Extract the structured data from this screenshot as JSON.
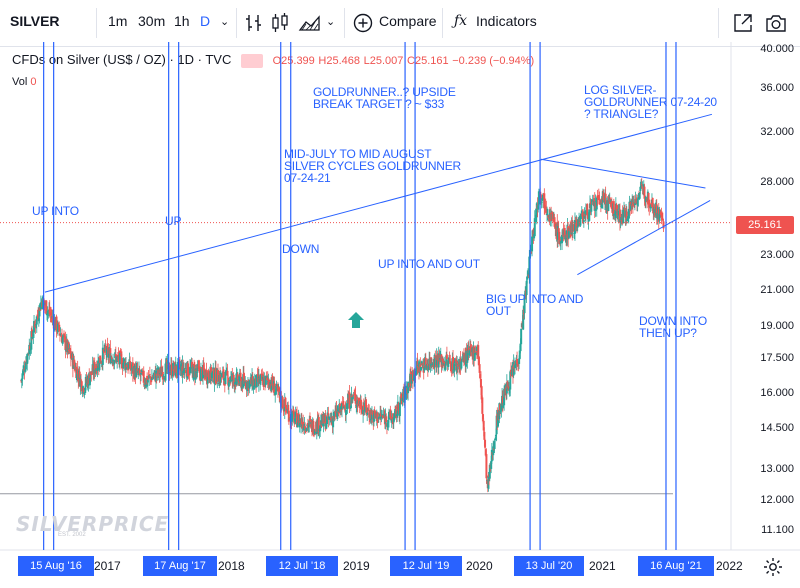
{
  "toolbar": {
    "symbol": "SILVER",
    "intervals": [
      "1m",
      "30m",
      "1h",
      "D"
    ],
    "compare_label": "Compare",
    "indicators_label": "Indicators"
  },
  "legend": {
    "title": "CFDs on Silver (US$ / OZ) · 1D · TVC",
    "open": "O25.399",
    "high": "H25.468",
    "low": "L25.007",
    "close": "C25.161",
    "change": "−0.239 (−0.94%)",
    "vol_label": "Vol",
    "vol_value": "0"
  },
  "annotations": [
    {
      "id": "up-into",
      "text": "UP INTO"
    },
    {
      "id": "up",
      "text": "UP"
    },
    {
      "id": "down",
      "text": "DOWN"
    },
    {
      "id": "up-into-and-out",
      "text": "UP INTO AND OUT"
    },
    {
      "id": "big-up",
      "text": "BIG UP INTO AND\nOUT"
    },
    {
      "id": "down-into",
      "text": "DOWN INTO\nTHEN UP?"
    },
    {
      "id": "goldrunner",
      "text": "GOLDRUNNER..? UPSIDE\nBREAK TARGET ? ~ $33"
    },
    {
      "id": "mid-july",
      "text": "MID-JULY TO MID AUGUST\nSILVER CYCLES GOLDRUNNER\n07-24-21"
    },
    {
      "id": "log-silver",
      "text": "LOG SILVER-\nGOLDRUNNER 07-24-20\n? TRIANGLE?"
    }
  ],
  "y_axis_labels": [
    "40.000",
    "36.000",
    "32.000",
    "28.000",
    "23.000",
    "21.000",
    "19.000",
    "17.500",
    "16.000",
    "14.500",
    "13.000",
    "12.000",
    "11.100"
  ],
  "last_price": "25.161",
  "date_badges": [
    "15 Aug '16",
    "17 Aug '17",
    "12 Jul '18",
    "12 Jul '19",
    "13 Jul '20",
    "16 Aug '21"
  ],
  "year_labels": [
    "2017",
    "2018",
    "2019",
    "2020",
    "2021",
    "2022"
  ],
  "watermark": "SILVERPRICE",
  "watermark_sub": "EST. 2002",
  "colors": {
    "accent": "#2962ff",
    "up": "#26a69a",
    "down": "#ef5350"
  },
  "chart_data": {
    "type": "candlestick",
    "y_scale": "log",
    "ylim": [
      10.6,
      41.0
    ],
    "x": [
      "2016-06",
      "2016-08",
      "2016-10",
      "2016-12",
      "2017-02",
      "2017-04",
      "2017-06",
      "2017-08",
      "2017-10",
      "2017-12",
      "2018-02",
      "2018-04",
      "2018-06",
      "2018-08",
      "2018-10",
      "2018-12",
      "2019-02",
      "2019-04",
      "2019-06",
      "2019-08",
      "2019-10",
      "2019-12",
      "2020-02",
      "2020-03",
      "2020-04",
      "2020-06",
      "2020-08",
      "2020-10",
      "2020-12",
      "2021-02",
      "2021-04",
      "2021-06",
      "2021-08"
    ],
    "series": [
      {
        "name": "",
        "values": [
          16.5,
          20.5,
          18.5,
          16.2,
          17.8,
          17.3,
          16.5,
          17.0,
          17.0,
          16.8,
          16.6,
          16.4,
          16.5,
          15.0,
          14.6,
          14.9,
          15.8,
          15.0,
          14.9,
          17.0,
          17.5,
          17.2,
          18.0,
          12.3,
          15.1,
          17.6,
          27.5,
          24.0,
          25.5,
          26.8,
          25.5,
          27.5,
          25.16
        ]
      }
    ],
    "markers": [
      {
        "date": "2016-08-15",
        "label": "15 Aug '16"
      },
      {
        "date": "2017-08-17",
        "label": "17 Aug '17"
      },
      {
        "date": "2018-07-12",
        "label": "12 Jul '18"
      },
      {
        "date": "2019-07-12",
        "label": "12 Jul '19"
      },
      {
        "date": "2020-07-13",
        "label": "13 Jul '20"
      },
      {
        "date": "2021-08-16",
        "label": "16 Aug '21"
      }
    ],
    "last_price": 25.161,
    "horizontal_levels": [
      25.161,
      12.2
    ]
  }
}
